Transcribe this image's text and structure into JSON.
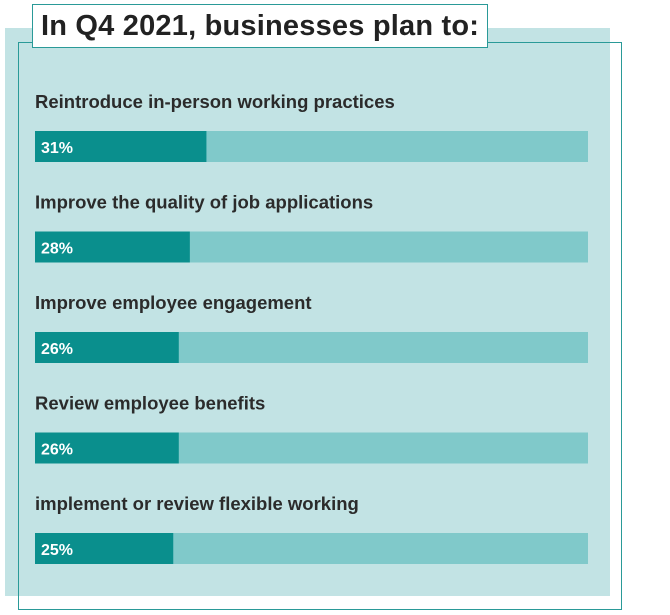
{
  "title": "In Q4 2021, businesses plan to:",
  "colors": {
    "panel": "#c2e3e4",
    "outline": "#2a9a98",
    "bar_track": "#80c9ca",
    "bar_fill": "#0a8f8d",
    "text": "#2b2b2b"
  },
  "chart_data": {
    "type": "bar",
    "orientation": "horizontal",
    "title": "In Q4 2021, businesses plan to:",
    "categories": [
      "Reintroduce in-person working practices",
      "Improve the quality of job applications",
      "Improve employee engagement",
      "Review employee benefits",
      "implement or review flexible working"
    ],
    "values": [
      31,
      28,
      26,
      26,
      25
    ],
    "value_labels": [
      "31%",
      "28%",
      "26%",
      "26%",
      "25%"
    ],
    "unit": "%",
    "xlim": [
      0,
      100
    ],
    "grid": false,
    "legend": "none"
  }
}
